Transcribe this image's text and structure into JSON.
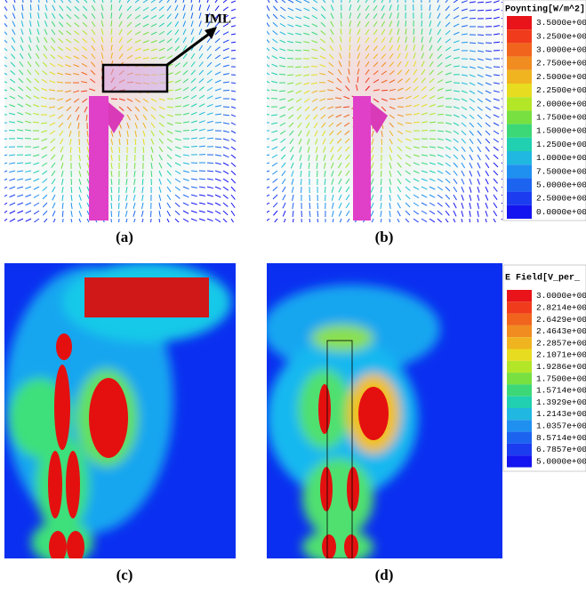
{
  "panels": [
    {
      "caption": "(a)",
      "annotation": "IML"
    },
    {
      "caption": "(b)"
    },
    {
      "caption": "(c)"
    },
    {
      "caption": "(d)"
    }
  ],
  "legends": [
    {
      "title": "Poynting[W/m^2]",
      "labels": [
        "3.5000e+00",
        "3.2500e+00",
        "3.0000e+00",
        "2.7500e+00",
        "2.5000e+00",
        "2.2500e+00",
        "2.0000e+00",
        "1.7500e+00",
        "1.5000e+00",
        "1.2500e+00",
        "1.0000e+00",
        "7.5000e+00",
        "5.0000e+00",
        "2.5000e+00",
        "0.0000e+00"
      ]
    },
    {
      "title": "E Field[V_per_",
      "labels": [
        "3.0000e+00",
        "2.8214e+00",
        "2.6429e+00",
        "2.4643e+00",
        "2.2857e+00",
        "2.1071e+00",
        "1.9286e+00",
        "1.7500e+00",
        "1.5714e+00",
        "1.3929e+00",
        "1.2143e+00",
        "1.0357e+00",
        "8.5714e+00",
        "6.7857e+00",
        "5.0000e+00"
      ]
    }
  ]
}
